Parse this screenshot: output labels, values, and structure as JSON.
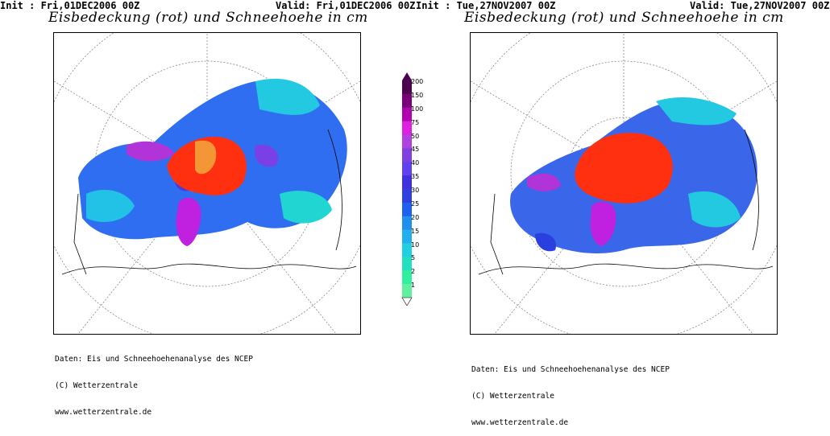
{
  "left": {
    "init": "Init : Fri,01DEC2006 00Z",
    "valid": "Valid: Fri,01DEC2006 00Z",
    "title": "Eisbedeckung (rot) und Schneehoehe in cm",
    "credits": [
      "Daten: Eis und Schneehoehenanalyse des NCEP",
      "(C) Wetterzentrale",
      "www.wetterzentrale.de"
    ]
  },
  "right": {
    "init": "Init : Tue,27NOV2007 00Z",
    "valid": "Valid: Tue,27NOV2007 00Z",
    "title": "Eisbedeckung (rot) und Schneehoehe in cm",
    "credits": [
      "Daten: Eis und Schneehoehenanalyse des NCEP",
      "(C) Wetterzentrale",
      "www.wetterzentrale.de"
    ]
  },
  "legend": {
    "levels": [
      "200",
      "150",
      "100",
      "75",
      "50",
      "45",
      "40",
      "35",
      "30",
      "25",
      "20",
      "15",
      "10",
      "5",
      "2",
      "1"
    ],
    "colors": [
      "#4b0050",
      "#7a007a",
      "#b000b0",
      "#e020e0",
      "#b040e0",
      "#8040e0",
      "#6040f0",
      "#4030e0",
      "#3040e0",
      "#2060f0",
      "#2090f0",
      "#20b0f0",
      "#20d0e0",
      "#20e0c0",
      "#30f0a0",
      "#60f0a0"
    ]
  },
  "colors": {
    "ice": "#ff3010",
    "snow_blue": "#3070f0",
    "snow_cyan": "#20d0e0",
    "snow_purple": "#b030d0",
    "greenland": "#c020e0"
  }
}
